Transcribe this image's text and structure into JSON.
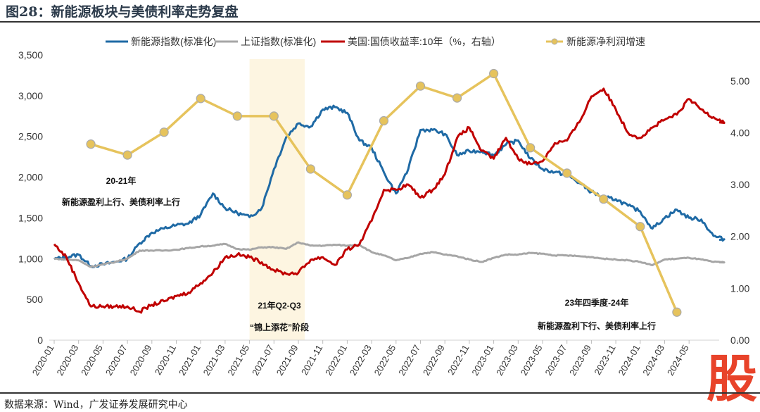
{
  "title": "图28：新能源板块与美债利率走势复盘",
  "source": "数据来源：Wind，广发证券发展研究中心",
  "watermark": "股",
  "chart_data": {
    "type": "line",
    "title": "图28：新能源板块与美债利率走势复盘",
    "x_start": "2020-01",
    "x_tick_labels": [
      "2020-01",
      "2020-03",
      "2020-05",
      "2020-07",
      "2020-09",
      "2020-11",
      "2021-01",
      "2021-03",
      "2021-05",
      "2021-07",
      "2021-09",
      "2021-11",
      "2022-01",
      "2022-03",
      "2022-05",
      "2022-07",
      "2022-09",
      "2022-11",
      "2023-01",
      "2023-03",
      "2023-05",
      "2023-07",
      "2023-09",
      "2023-11",
      "2024-01",
      "2024-03",
      "2024-05"
    ],
    "left_axis": {
      "ylim": [
        0,
        3500
      ],
      "ticks": [
        "0",
        "500",
        "1,000",
        "1,500",
        "2,000",
        "2,500",
        "3,000",
        "3,500"
      ]
    },
    "right_axis": {
      "ylim": [
        0,
        5.5
      ],
      "ticks": [
        "0.00",
        "1.00",
        "2.00",
        "3.00",
        "4.00",
        "5.00"
      ]
    },
    "legend_position": "top",
    "series": [
      {
        "name": "新能源指数(标准化)",
        "axis": "left",
        "color": "#1f6aa5",
        "x_unit": "month index from 2020-01",
        "values": [
          994,
          1020,
          1050,
          910,
          930,
          960,
          1000,
          1190,
          1320,
          1370,
          1410,
          1430,
          1540,
          1800,
          1620,
          1560,
          1510,
          1620,
          2100,
          2490,
          2660,
          2620,
          2830,
          2860,
          2790,
          2450,
          2360,
          2060,
          1800,
          2100,
          2580,
          2580,
          2530,
          2270,
          2320,
          2320,
          2270,
          2400,
          2450,
          2230,
          2100,
          2060,
          2030,
          1930,
          1820,
          1750,
          1730,
          1650,
          1580,
          1370,
          1500,
          1600,
          1500,
          1480,
          1280,
          1230
        ]
      },
      {
        "name": "上证指数(标准化)",
        "axis": "left",
        "color": "#a6a6a6",
        "values": [
          1000,
          990,
          980,
          900,
          930,
          960,
          1000,
          1100,
          1100,
          1100,
          1110,
          1130,
          1150,
          1160,
          1180,
          1120,
          1110,
          1140,
          1140,
          1120,
          1200,
          1160,
          1160,
          1170,
          1160,
          1170,
          1080,
          1040,
          980,
          1010,
          1060,
          1080,
          1050,
          1030,
          990,
          960,
          1010,
          1050,
          1050,
          1070,
          1060,
          1040,
          1040,
          1030,
          1020,
          1000,
          990,
          980,
          960,
          920,
          990,
          1000,
          1010,
          990,
          960,
          955
        ]
      },
      {
        "name": "美国:国债收益率:10年（%，右轴）",
        "axis": "right",
        "color": "#c00000",
        "values": [
          1.85,
          1.6,
          1.1,
          0.65,
          0.65,
          0.65,
          0.65,
          0.55,
          0.68,
          0.75,
          0.85,
          0.92,
          1.1,
          1.3,
          1.6,
          1.65,
          1.6,
          1.5,
          1.35,
          1.28,
          1.3,
          1.55,
          1.6,
          1.45,
          1.75,
          1.85,
          2.3,
          2.9,
          2.9,
          3.0,
          2.75,
          2.9,
          3.2,
          3.9,
          4.1,
          3.65,
          3.5,
          3.9,
          3.5,
          3.4,
          3.45,
          3.8,
          3.85,
          4.2,
          4.7,
          4.85,
          4.45,
          4.0,
          3.9,
          4.1,
          4.25,
          4.35,
          4.65,
          4.45,
          4.3,
          4.2
        ]
      },
      {
        "name": "新能源净利润增速",
        "axis": "right",
        "color": "#e6c35c",
        "marker": "circle",
        "x": [
          "2020Q1",
          "2020Q2",
          "2020Q3",
          "2020Q4",
          "2021Q1",
          "2021Q2",
          "2021Q3",
          "2021Q4",
          "2022Q1",
          "2022Q2",
          "2022Q3",
          "2022Q4",
          "2023Q1",
          "2023Q2",
          "2023Q3",
          "2023Q4",
          "2024Q1"
        ],
        "values": [
          3.78,
          3.57,
          4.01,
          4.66,
          4.32,
          4.32,
          3.3,
          2.8,
          4.23,
          4.9,
          4.67,
          5.14,
          3.71,
          3.22,
          2.72,
          2.19,
          0.54
        ]
      }
    ],
    "shaded_region": {
      "from": "2021-05",
      "to": "2021-09"
    },
    "annotations": [
      {
        "id": "a1",
        "text": "20-21年"
      },
      {
        "id": "a2",
        "text": "新能源盈利上行、美债利率上行"
      },
      {
        "id": "a3",
        "text": "21年Q2-Q3"
      },
      {
        "id": "a4",
        "text": "“锦上添花”阶段"
      },
      {
        "id": "a5",
        "text": "23年四季度-24年"
      },
      {
        "id": "a6",
        "text": "新能源盈利下行、美债利率上行"
      }
    ]
  }
}
